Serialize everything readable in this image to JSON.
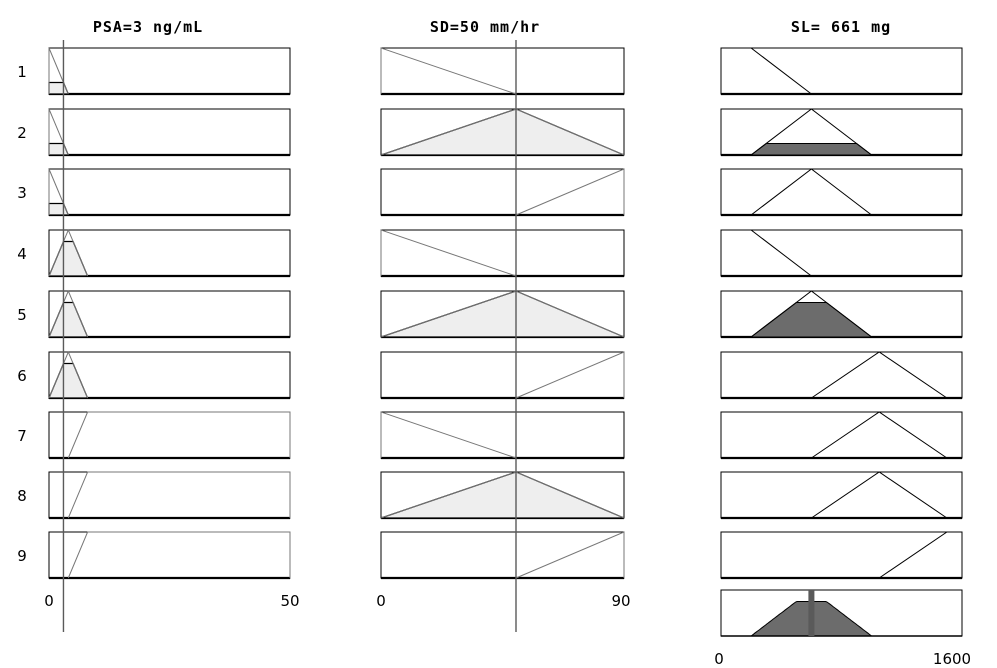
{
  "titles": {
    "psa": "PSA=3 ng/mL",
    "sd": "SD=50 mm/hr",
    "sl": "SL= 661 mg"
  },
  "rules": [
    "1",
    "2",
    "3",
    "4",
    "5",
    "6",
    "7",
    "8",
    "9"
  ],
  "axes": {
    "psa": {
      "min": "0",
      "max": "50"
    },
    "sd": {
      "min": "0",
      "max": "90"
    },
    "sl": {
      "min": "0",
      "max": "1600"
    }
  },
  "inputs": {
    "psa": 3,
    "sd": 50
  },
  "colors": {
    "light_fill": "#eeeeee",
    "dark_fill": "#6c6c6c",
    "indicator": "#5a5a5a",
    "outline": "#000000"
  }
}
